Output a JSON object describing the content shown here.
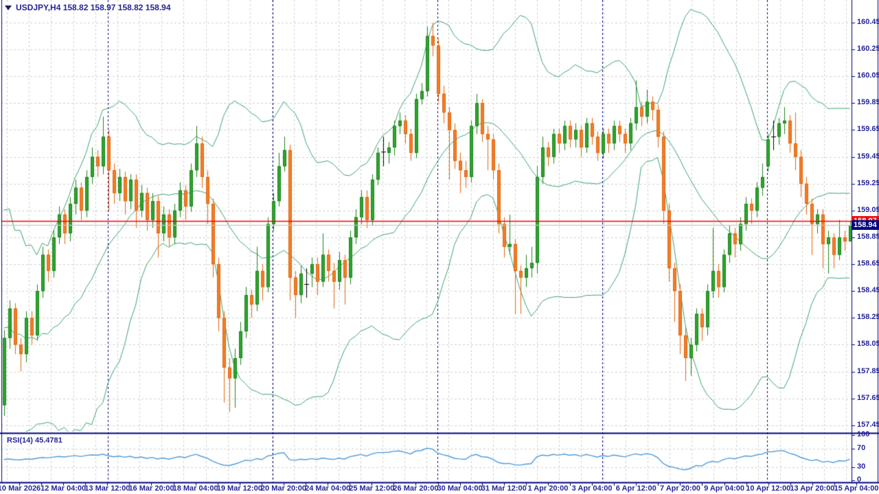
{
  "header": {
    "title": "USDJPY,H4  158.82 158.97 158.82 158.94",
    "symbol": "USDJPY",
    "period": "H4",
    "open": "158.82",
    "high": "158.97",
    "low": "158.82",
    "close": "158.94"
  },
  "indicator_panel": {
    "label": "RSI(14) 45.4781",
    "name": "RSI",
    "period": 14,
    "value": "45.4781",
    "axis_labels": [
      "100",
      "70",
      "30",
      "0"
    ],
    "levels": [
      70,
      30
    ]
  },
  "price_axis": {
    "labels": [
      "160.45",
      "160.25",
      "160.05",
      "159.85",
      "159.65",
      "159.45",
      "159.25",
      "159.05",
      "158.85",
      "158.65",
      "158.45",
      "158.25",
      "158.05",
      "157.85",
      "157.65",
      "157.45"
    ],
    "ask_box": "158.97",
    "bid_box": "158.94"
  },
  "time_axis": {
    "labels": [
      "10 Mar 2026",
      "12 Mar 04:00",
      "13 Mar 12:00",
      "16 Mar 20:00",
      "18 Mar 04:00",
      "19 Mar 12:00",
      "20 Mar 20:00",
      "24 Mar 04:00",
      "25 Mar 12:00",
      "26 Mar 20:00",
      "30 Mar 04:00",
      "31 Mar 12:00",
      "1 Apr 20:00",
      "3 Apr 04:00",
      "6 Apr 12:00",
      "7 Apr 20:00",
      "9 Apr 04:00",
      "10 Apr 12:00",
      "13 Apr 20:00",
      "15 Apr 04:00"
    ]
  },
  "colors": {
    "bull_fill": "#2fa52f",
    "bull_border": "#1c831c",
    "bear_fill": "#f07e28",
    "bear_border": "#e3640e",
    "doji": "#000000",
    "bands": "#3aa56e",
    "rsi_line": "#4d9bd9",
    "ask_line": "#f20000",
    "bid_line": "#c6c6c6",
    "grid": "#cfcfcf",
    "separator": "#000080",
    "axis_text": "#24249a",
    "frame": "#000080"
  },
  "chart_data": {
    "type": "candlestick",
    "title": "USDJPY,H4",
    "xlabel": "time",
    "ylabel": "price",
    "price_axis_range": {
      "top_label": 160.45,
      "bottom_label": 157.45,
      "step": 0.2
    },
    "rsi_range": [
      0,
      100
    ],
    "bid": 158.94,
    "ask": 158.97,
    "legend_position": "none",
    "grid": true,
    "indicators": [
      {
        "name": "Bollinger Bands",
        "period": 20,
        "deviation": 2
      },
      {
        "name": "RSI",
        "period": 14,
        "value": 45.4781
      }
    ],
    "separators_weekly": [
      "16 Mar",
      "23 Mar",
      "30 Mar",
      "6 Apr",
      "13 Apr"
    ],
    "preroll_closes": [
      159.3,
      158.2,
      159.1,
      158.0,
      158.9,
      157.9,
      158.8,
      157.8,
      158.7,
      157.9,
      158.6,
      157.8,
      158.5,
      157.7,
      158.3,
      157.7,
      158.2,
      157.6,
      158.0,
      157.7
    ],
    "candles": [
      [
        157.6,
        158.16,
        157.52,
        158.1
      ],
      [
        158.1,
        158.38,
        158.02,
        158.32
      ],
      [
        158.32,
        158.36,
        157.98,
        158.05
      ],
      [
        158.05,
        158.1,
        157.85,
        157.98
      ],
      [
        157.98,
        158.3,
        157.92,
        158.25
      ],
      [
        158.25,
        158.3,
        158.05,
        158.12
      ],
      [
        158.12,
        158.5,
        158.08,
        158.45
      ],
      [
        158.45,
        158.78,
        158.4,
        158.72
      ],
      [
        158.72,
        158.76,
        158.52,
        158.6
      ],
      [
        158.6,
        158.9,
        158.55,
        158.85
      ],
      [
        158.85,
        159.08,
        158.8,
        159.02
      ],
      [
        159.02,
        159.06,
        158.8,
        158.88
      ],
      [
        158.88,
        159.15,
        158.82,
        159.1
      ],
      [
        159.1,
        159.28,
        159.02,
        159.22
      ],
      [
        159.22,
        159.26,
        158.98,
        159.05
      ],
      [
        159.05,
        159.35,
        159.0,
        159.3
      ],
      [
        159.3,
        159.52,
        159.25,
        159.45
      ],
      [
        159.45,
        159.5,
        159.3,
        159.38
      ],
      [
        159.38,
        159.75,
        159.32,
        159.6
      ],
      [
        159.6,
        159.65,
        159.05,
        159.35
      ],
      [
        159.35,
        159.4,
        159.1,
        159.18
      ],
      [
        159.18,
        159.36,
        159.12,
        159.3
      ],
      [
        159.3,
        159.34,
        159.02,
        159.12
      ],
      [
        159.12,
        159.32,
        159.06,
        159.28
      ],
      [
        159.28,
        159.32,
        158.92,
        159.05
      ],
      [
        159.05,
        159.24,
        159.0,
        159.18
      ],
      [
        159.18,
        159.22,
        158.9,
        158.98
      ],
      [
        158.98,
        159.18,
        158.92,
        159.12
      ],
      [
        159.12,
        159.16,
        158.7,
        158.88
      ],
      [
        158.88,
        159.08,
        158.82,
        159.02
      ],
      [
        159.02,
        159.06,
        158.78,
        158.85
      ],
      [
        158.85,
        159.1,
        158.8,
        159.05
      ],
      [
        159.05,
        159.26,
        159.0,
        159.2
      ],
      [
        159.2,
        159.24,
        158.98,
        159.08
      ],
      [
        159.08,
        159.4,
        159.04,
        159.35
      ],
      [
        159.35,
        159.68,
        159.3,
        159.55
      ],
      [
        159.55,
        159.6,
        159.22,
        159.3
      ],
      [
        159.3,
        159.35,
        158.95,
        159.1
      ],
      [
        159.1,
        159.14,
        158.55,
        158.65
      ],
      [
        158.65,
        158.7,
        158.15,
        158.25
      ],
      [
        158.25,
        158.3,
        157.62,
        157.88
      ],
      [
        157.88,
        157.95,
        157.55,
        157.8
      ],
      [
        157.8,
        158.02,
        157.58,
        157.95
      ],
      [
        157.95,
        158.22,
        157.9,
        158.15
      ],
      [
        158.15,
        158.48,
        158.1,
        158.42
      ],
      [
        158.42,
        158.46,
        158.25,
        158.35
      ],
      [
        158.35,
        158.78,
        158.3,
        158.6
      ],
      [
        158.6,
        158.65,
        158.38,
        158.48
      ],
      [
        158.48,
        159.0,
        158.44,
        158.95
      ],
      [
        158.95,
        159.18,
        158.9,
        159.12
      ],
      [
        159.12,
        159.48,
        159.08,
        159.38
      ],
      [
        159.38,
        159.6,
        159.34,
        159.5
      ],
      [
        159.5,
        159.54,
        158.38,
        158.55
      ],
      [
        158.55,
        158.6,
        158.25,
        158.42
      ],
      [
        158.42,
        158.64,
        158.36,
        158.58
      ],
      [
        158.5,
        158.62,
        158.4,
        158.5
      ],
      [
        158.58,
        158.7,
        158.48,
        158.65
      ],
      [
        158.65,
        158.7,
        158.42,
        158.52
      ],
      [
        158.52,
        158.88,
        158.48,
        158.72
      ],
      [
        158.72,
        158.76,
        158.52,
        158.6
      ],
      [
        158.6,
        158.66,
        158.32,
        158.52
      ],
      [
        158.52,
        158.74,
        158.46,
        158.68
      ],
      [
        158.68,
        158.72,
        158.35,
        158.55
      ],
      [
        158.55,
        158.9,
        158.5,
        158.85
      ],
      [
        158.85,
        159.06,
        158.8,
        159.0
      ],
      [
        159.0,
        159.2,
        158.95,
        159.15
      ],
      [
        159.15,
        159.2,
        158.92,
        158.98
      ],
      [
        158.98,
        159.32,
        158.94,
        159.28
      ],
      [
        159.28,
        159.52,
        159.24,
        159.48
      ],
      [
        159.49,
        159.6,
        159.38,
        159.49
      ],
      [
        159.48,
        159.56,
        159.4,
        159.52
      ],
      [
        159.52,
        159.72,
        159.46,
        159.68
      ],
      [
        159.68,
        159.78,
        159.62,
        159.72
      ],
      [
        159.72,
        159.76,
        159.55,
        159.62
      ],
      [
        159.62,
        159.66,
        159.42,
        159.48
      ],
      [
        159.48,
        159.92,
        159.44,
        159.88
      ],
      [
        159.88,
        160.0,
        159.84,
        159.94
      ],
      [
        159.94,
        160.42,
        159.9,
        160.35
      ],
      [
        160.35,
        160.45,
        160.2,
        160.28
      ],
      [
        160.28,
        160.33,
        159.86,
        159.92
      ],
      [
        159.92,
        159.98,
        159.7,
        159.78
      ],
      [
        159.78,
        159.82,
        159.28,
        159.65
      ],
      [
        159.65,
        159.7,
        159.36,
        159.42
      ],
      [
        159.42,
        159.48,
        159.18,
        159.35
      ],
      [
        159.35,
        159.42,
        159.22,
        159.3
      ],
      [
        159.3,
        159.72,
        159.26,
        159.68
      ],
      [
        159.68,
        159.92,
        159.62,
        159.85
      ],
      [
        159.85,
        159.88,
        159.56,
        159.62
      ],
      [
        159.62,
        159.68,
        159.35,
        159.58
      ],
      [
        159.58,
        159.62,
        159.28,
        159.35
      ],
      [
        159.35,
        159.4,
        158.88,
        158.95
      ],
      [
        158.95,
        159.0,
        158.7,
        158.78
      ],
      [
        158.78,
        159.02,
        158.72,
        158.8
      ],
      [
        158.8,
        158.84,
        158.28,
        158.6
      ],
      [
        158.6,
        158.64,
        158.28,
        158.55
      ],
      [
        158.55,
        158.72,
        158.48,
        158.62
      ],
      [
        158.62,
        158.78,
        158.55,
        158.66
      ],
      [
        158.66,
        159.38,
        158.58,
        159.3
      ],
      [
        159.3,
        159.6,
        159.25,
        159.52
      ],
      [
        159.52,
        159.56,
        159.38,
        159.45
      ],
      [
        159.45,
        159.66,
        159.4,
        159.62
      ],
      [
        159.62,
        159.66,
        159.48,
        159.55
      ],
      [
        159.55,
        159.72,
        159.5,
        159.68
      ],
      [
        159.68,
        159.72,
        159.52,
        159.58
      ],
      [
        159.58,
        159.7,
        159.52,
        159.65
      ],
      [
        159.65,
        159.68,
        159.45,
        159.52
      ],
      [
        159.52,
        159.74,
        159.48,
        159.7
      ],
      [
        159.7,
        159.74,
        159.54,
        159.6
      ],
      [
        159.6,
        159.64,
        159.42,
        159.48
      ],
      [
        159.48,
        159.66,
        159.44,
        159.62
      ],
      [
        159.62,
        159.66,
        159.48,
        159.55
      ],
      [
        159.55,
        159.72,
        159.5,
        159.68
      ],
      [
        159.68,
        159.72,
        159.56,
        159.62
      ],
      [
        159.62,
        159.66,
        159.48,
        159.55
      ],
      [
        159.55,
        159.74,
        159.5,
        159.7
      ],
      [
        159.7,
        160.02,
        159.65,
        159.82
      ],
      [
        159.82,
        159.86,
        159.68,
        159.75
      ],
      [
        159.75,
        159.95,
        159.7,
        159.86
      ],
      [
        159.86,
        159.9,
        159.72,
        159.8
      ],
      [
        159.8,
        159.84,
        159.52,
        159.6
      ],
      [
        159.6,
        159.64,
        158.95,
        159.05
      ],
      [
        159.05,
        159.1,
        158.52,
        158.62
      ],
      [
        158.62,
        158.66,
        158.22,
        158.45
      ],
      [
        158.45,
        158.5,
        157.98,
        158.12
      ],
      [
        158.12,
        158.18,
        157.78,
        157.95
      ],
      [
        157.95,
        158.1,
        157.82,
        158.05
      ],
      [
        158.05,
        158.32,
        158.0,
        158.28
      ],
      [
        158.28,
        158.32,
        158.08,
        158.18
      ],
      [
        158.18,
        158.5,
        158.12,
        158.45
      ],
      [
        158.45,
        158.92,
        158.4,
        158.6
      ],
      [
        158.6,
        158.65,
        158.4,
        158.48
      ],
      [
        158.48,
        158.76,
        158.44,
        158.72
      ],
      [
        158.72,
        158.94,
        158.66,
        158.88
      ],
      [
        158.88,
        158.92,
        158.7,
        158.8
      ],
      [
        158.8,
        159.0,
        158.75,
        158.95
      ],
      [
        158.95,
        159.15,
        158.9,
        159.1
      ],
      [
        159.1,
        159.14,
        158.95,
        159.05
      ],
      [
        159.05,
        159.26,
        159.0,
        159.22
      ],
      [
        159.22,
        159.4,
        159.16,
        159.3
      ],
      [
        159.38,
        159.62,
        159.34,
        159.58
      ],
      [
        159.6,
        159.72,
        159.5,
        159.6
      ],
      [
        159.6,
        159.74,
        159.54,
        159.7
      ],
      [
        159.7,
        159.82,
        159.62,
        159.72
      ],
      [
        159.72,
        159.76,
        159.48,
        159.55
      ],
      [
        159.55,
        159.78,
        159.35,
        159.45
      ],
      [
        159.45,
        159.5,
        159.15,
        159.25
      ],
      [
        159.25,
        159.3,
        159.02,
        159.1
      ],
      [
        159.1,
        159.14,
        158.72,
        158.95
      ],
      [
        158.95,
        159.06,
        158.88,
        159.02
      ],
      [
        159.02,
        159.06,
        158.62,
        158.8
      ],
      [
        158.8,
        158.9,
        158.58,
        158.85
      ],
      [
        158.85,
        158.88,
        158.62,
        158.72
      ],
      [
        158.72,
        158.98,
        158.68,
        158.85
      ],
      [
        158.85,
        158.9,
        158.75,
        158.82
      ],
      [
        158.82,
        158.97,
        158.82,
        158.94
      ]
    ]
  }
}
